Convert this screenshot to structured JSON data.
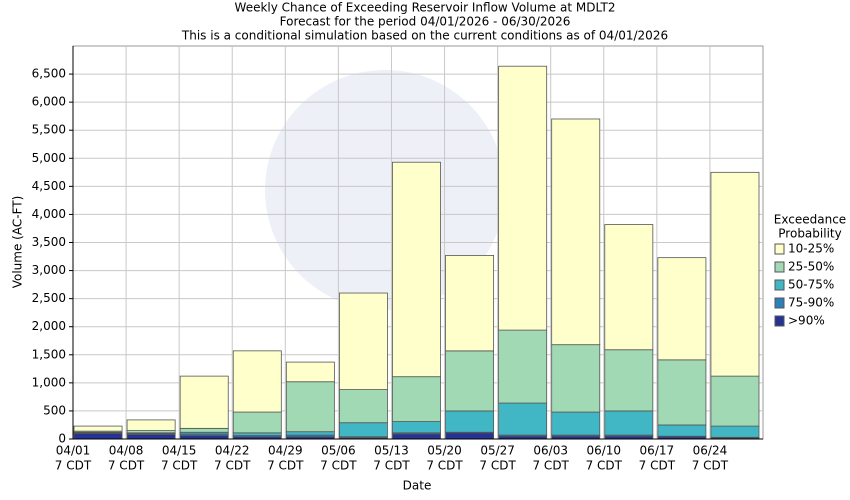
{
  "chart_data": {
    "type": "bar",
    "stacked": true,
    "title": "Weekly Chance of Exceeding Reservoir Inflow Volume at MDLT2",
    "subtitles": [
      "Forecast for the period 04/01/2026 - 06/30/2026",
      "This is a conditional simulation based on the current conditions as of 04/01/2026"
    ],
    "x_label": "Date",
    "y_label": "Volume (AC-FT)",
    "legend_title": [
      "Exceedance",
      "Probability"
    ],
    "categories": [
      "04/01",
      "04/08",
      "04/15",
      "04/22",
      "04/29",
      "05/06",
      "05/13",
      "05/20",
      "05/27",
      "06/03",
      "06/10",
      "06/17",
      "06/24"
    ],
    "x_sublabels": [
      "7 CDT",
      "7 CDT",
      "7 CDT",
      "7 CDT",
      "7 CDT",
      "7 CDT",
      "7 CDT",
      "7 CDT",
      "7 CDT",
      "7 CDT",
      "7 CDT",
      "7 CDT",
      "7 CDT"
    ],
    "series": [
      {
        "name": ">90%",
        "color": "#253494",
        "values": [
          100,
          80,
          60,
          40,
          40,
          20,
          90,
          110,
          50,
          50,
          50,
          40,
          20
        ]
      },
      {
        "name": "75-90%",
        "color": "#2c7fb8",
        "values": [
          10,
          20,
          30,
          20,
          30,
          20,
          20,
          10,
          20,
          20,
          20,
          10,
          10
        ]
      },
      {
        "name": "50-75%",
        "color": "#41b6c4",
        "values": [
          10,
          10,
          30,
          50,
          60,
          250,
          200,
          380,
          570,
          410,
          430,
          200,
          200
        ]
      },
      {
        "name": "25-50%",
        "color": "#a1d9b4",
        "values": [
          20,
          40,
          70,
          370,
          890,
          590,
          800,
          1070,
          1300,
          1200,
          1090,
          1160,
          890
        ]
      },
      {
        "name": "10-25%",
        "color": "#ffffcc",
        "values": [
          90,
          190,
          930,
          1090,
          350,
          1720,
          3820,
          1700,
          4700,
          4020,
          2230,
          1820,
          3630
        ]
      }
    ],
    "ylim": [
      0,
      7000
    ],
    "yticks": [
      0,
      500,
      {
        "value": 1000,
        "label": "1,000"
      },
      {
        "value": 1500,
        "label": "1,500"
      },
      {
        "value": 2000,
        "label": "2,000"
      },
      {
        "value": 2500,
        "label": "2,500"
      },
      {
        "value": 3000,
        "label": "3,000"
      },
      {
        "value": 3500,
        "label": "3,500"
      },
      {
        "value": 4000,
        "label": "4,000"
      },
      {
        "value": 4500,
        "label": "4,500"
      },
      {
        "value": 5000,
        "label": "5,000"
      },
      {
        "value": 5500,
        "label": "5,500"
      },
      {
        "value": 6000,
        "label": "6,000"
      },
      {
        "value": 6500,
        "label": "6,500"
      }
    ],
    "grid": true
  }
}
